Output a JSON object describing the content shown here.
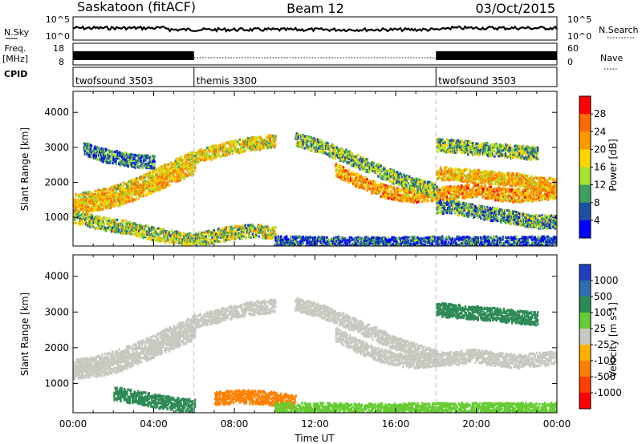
{
  "header": {
    "station": "Saskatoon (fitACF)",
    "beam": "Beam 12",
    "date": "03/Oct/2015"
  },
  "noise_panel": {
    "left_label": "N.Sky",
    "left_ticks": [
      "10^5",
      "10^0"
    ],
    "right_label": "N.Search",
    "right_ticks": [
      "10^5",
      "10^0"
    ]
  },
  "freq_panel": {
    "left_label_line1": "Freq.",
    "left_label_line2": "[MHz]",
    "left_ticks": [
      "18",
      "8"
    ],
    "right_label": "Nave",
    "right_ticks": [
      "60",
      "0"
    ]
  },
  "cpid_panel": {
    "label": "CPID",
    "modes": [
      {
        "name": "twofsound 3503",
        "start_h": 0,
        "end_h": 6
      },
      {
        "name": "themis 3300",
        "start_h": 6,
        "end_h": 18
      },
      {
        "name": "twofsound 3503",
        "start_h": 18,
        "end_h": 24
      }
    ]
  },
  "power_colorbar": {
    "label": "Power [dB]",
    "ticks": [
      "28",
      "24",
      "20",
      "16",
      "12",
      "8",
      "4"
    ],
    "colors": [
      "#ff0000",
      "#ff6a00",
      "#ff9900",
      "#ffd400",
      "#a6e22e",
      "#3f9f5f",
      "#1e4fa0",
      "#0000ff"
    ]
  },
  "velocity_colorbar": {
    "label": "Velocity [m s-1]",
    "ticks": [
      "1000",
      "500",
      "100",
      "25",
      "-25",
      "-100",
      "-500",
      "-1000"
    ],
    "colors": [
      "#1f3fbf",
      "#2f6fb0",
      "#2e8b57",
      "#66cc33",
      "#c8c8c0",
      "#ffb000",
      "#ff8000",
      "#ff4000",
      "#ff0000"
    ]
  },
  "chart_data": [
    {
      "type": "heatmap",
      "title": "Power",
      "ylabel": "Slant Range [km]",
      "ylim": [
        180,
        4600
      ],
      "yticks": [
        1000,
        2000,
        3000,
        4000
      ],
      "xlim": [
        0,
        24
      ],
      "x_unit": "hours UT",
      "mode_boundaries": [
        6,
        18
      ],
      "bands": [
        {
          "t": [
            0,
            1,
            2,
            3,
            4,
            5,
            6,
            7,
            8,
            9,
            10
          ],
          "r": [
            1500,
            1600,
            1750,
            1950,
            2200,
            2500,
            2750,
            2900,
            3050,
            3150,
            3200
          ],
          "power_db": 18
        },
        {
          "t": [
            0,
            1,
            2,
            3,
            4,
            5,
            6
          ],
          "r": [
            1350,
            1400,
            1500,
            1700,
            1950,
            2200,
            2450
          ],
          "power_db": 20
        },
        {
          "t": [
            13,
            14,
            15,
            16,
            17,
            18,
            19,
            20,
            21,
            22,
            23,
            24
          ],
          "r": [
            2400,
            2100,
            1850,
            1700,
            1650,
            1700,
            1750,
            1800,
            1700,
            1650,
            1700,
            1750
          ],
          "power_db": 22
        },
        {
          "t": [
            18,
            19,
            20,
            21,
            22,
            23,
            24
          ],
          "r": [
            2300,
            2250,
            2200,
            2150,
            2100,
            2000,
            1950
          ],
          "power_db": 20
        },
        {
          "t": [
            11,
            12,
            13,
            14,
            15,
            16,
            17,
            18
          ],
          "r": [
            3250,
            3100,
            2900,
            2650,
            2400,
            2150,
            1950,
            1800
          ],
          "power_db": 12
        },
        {
          "t": [
            0,
            1,
            2,
            3,
            4,
            5,
            6,
            7,
            8,
            9,
            10
          ],
          "r": [
            1050,
            900,
            800,
            700,
            550,
            450,
            400,
            500,
            600,
            650,
            600
          ],
          "power_db": 14
        },
        {
          "t": [
            10,
            12,
            14,
            16,
            18,
            20,
            22,
            24
          ],
          "r": [
            300,
            300,
            280,
            280,
            300,
            300,
            300,
            300
          ],
          "power_db": 6
        },
        {
          "t": [
            18,
            19,
            20,
            21,
            22,
            23,
            24
          ],
          "r": [
            1350,
            1300,
            1200,
            1100,
            1000,
            900,
            900
          ],
          "power_db": 10
        },
        {
          "t": [
            0.5,
            1,
            1.5,
            2,
            2.5,
            3,
            4
          ],
          "r": [
            3000,
            2900,
            2800,
            2750,
            2700,
            2650,
            2600
          ],
          "power_db": 8
        },
        {
          "t": [
            18,
            19,
            20,
            21,
            22,
            23
          ],
          "r": [
            3100,
            3050,
            3000,
            2950,
            2900,
            2850
          ],
          "power_db": 12
        }
      ]
    },
    {
      "type": "heatmap",
      "title": "Velocity",
      "ylabel": "Slant Range [km]",
      "xlabel": "Time UT",
      "ylim": [
        180,
        4600
      ],
      "yticks": [
        1000,
        2000,
        3000,
        4000
      ],
      "xlim": [
        0,
        24
      ],
      "x_unit": "hours UT",
      "xticks": [
        "00:00",
        "04:00",
        "08:00",
        "12:00",
        "16:00",
        "20:00",
        "00:00"
      ],
      "mode_boundaries": [
        6,
        18
      ],
      "bands": [
        {
          "t": [
            0,
            1,
            2,
            3,
            4,
            5,
            6,
            7,
            8,
            9,
            10
          ],
          "r": [
            1500,
            1600,
            1750,
            1950,
            2200,
            2500,
            2750,
            2900,
            3050,
            3150,
            3200
          ],
          "velocity": 0
        },
        {
          "t": [
            0,
            1,
            2,
            3,
            4,
            5,
            6
          ],
          "r": [
            1350,
            1400,
            1500,
            1700,
            1950,
            2200,
            2450
          ],
          "velocity": 0
        },
        {
          "t": [
            13,
            14,
            15,
            16,
            17,
            18,
            19,
            20,
            21,
            22,
            23,
            24
          ],
          "r": [
            2400,
            2100,
            1850,
            1700,
            1650,
            1700,
            1750,
            1800,
            1700,
            1650,
            1700,
            1750
          ],
          "velocity": 0
        },
        {
          "t": [
            11,
            12,
            13,
            14,
            15,
            16,
            17,
            18
          ],
          "r": [
            3250,
            3100,
            2900,
            2650,
            2400,
            2150,
            1950,
            1800
          ],
          "velocity": 0
        },
        {
          "t": [
            2,
            3,
            4,
            5,
            6
          ],
          "r": [
            750,
            650,
            550,
            450,
            400
          ],
          "velocity": 200
        },
        {
          "t": [
            7,
            8,
            9,
            10,
            11
          ],
          "r": [
            600,
            650,
            650,
            600,
            500
          ],
          "velocity": -200
        },
        {
          "t": [
            10,
            12,
            14,
            16,
            18,
            20,
            22,
            24
          ],
          "r": [
            300,
            300,
            280,
            280,
            300,
            300,
            300,
            300
          ],
          "velocity": 60
        },
        {
          "t": [
            18,
            19,
            20,
            21,
            22,
            23
          ],
          "r": [
            3100,
            3050,
            3000,
            2950,
            2900,
            2850
          ],
          "velocity": 200
        }
      ]
    }
  ]
}
